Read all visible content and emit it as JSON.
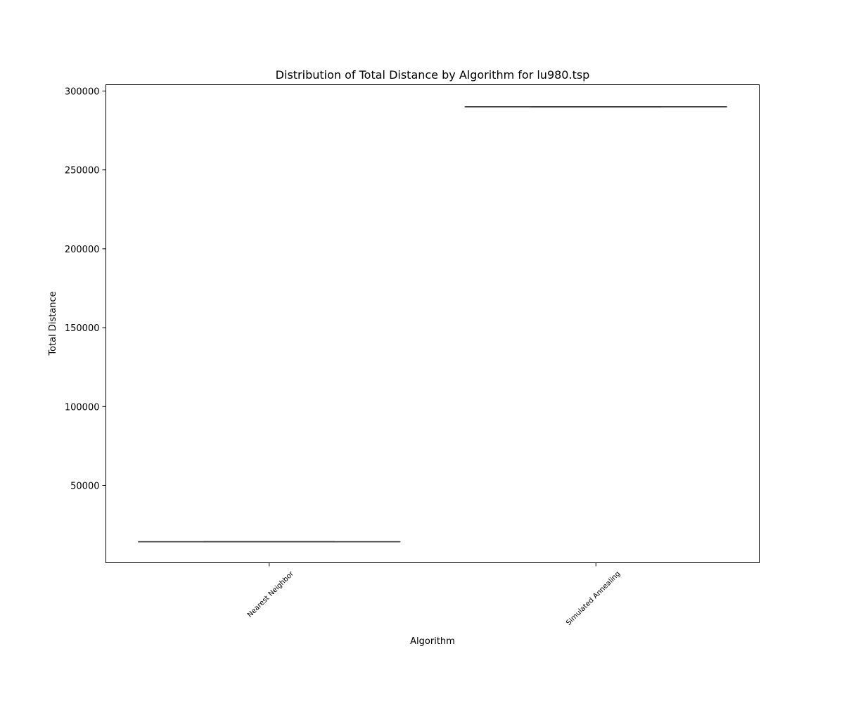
{
  "chart_data": {
    "type": "boxplot",
    "title": "Distribution of Total Distance by Algorithm for lu980.tsp",
    "xlabel": "Algorithm",
    "ylabel": "Total Distance",
    "categories": [
      "Nearest Neighbor",
      "Simulated Annealing"
    ],
    "series": [
      {
        "values": [
          {
            "min": 14300,
            "q1": 14300,
            "median": 14300,
            "q3": 14300,
            "max": 14300
          },
          {
            "min": 290000,
            "q1": 290000,
            "median": 290000,
            "q3": 290000,
            "max": 290000
          }
        ]
      }
    ],
    "yticks": [
      50000,
      100000,
      150000,
      200000,
      250000,
      300000
    ],
    "ylim": [
      1000,
      304000
    ],
    "grid": false,
    "box_color": "#3d3d3d"
  }
}
